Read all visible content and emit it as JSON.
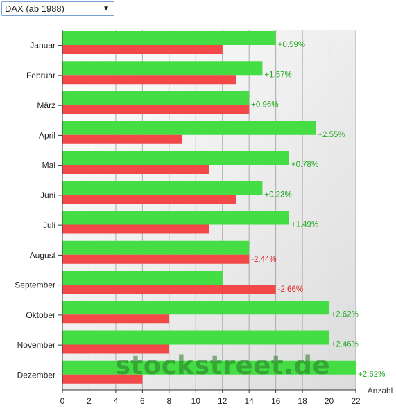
{
  "selector": {
    "value": "DAX (ab 1988)",
    "arrow": "▼"
  },
  "watermark": "stockstreet.de",
  "colors": {
    "up": "#44dd44",
    "down": "#f24848",
    "pos_text": "#22aa22",
    "neg_text": "#dd2222",
    "grid": "#aaaaaa"
  },
  "chart_data": {
    "type": "bar",
    "orientation": "horizontal",
    "categories": [
      "Januar",
      "Februar",
      "März",
      "April",
      "Mai",
      "Juni",
      "Juli",
      "August",
      "September",
      "Oktober",
      "November",
      "Dezember"
    ],
    "series": [
      {
        "color": "#44dd44",
        "values": [
          16,
          15,
          14,
          19,
          17,
          15,
          17,
          14,
          12,
          20,
          20,
          22
        ]
      },
      {
        "color": "#f24848",
        "values": [
          12,
          13,
          14,
          9,
          11,
          13,
          11,
          14,
          16,
          8,
          8,
          6
        ]
      }
    ],
    "data_labels": [
      "+0.59%",
      "+1.57%",
      "+0.96%",
      "+2.55%",
      "+0.78%",
      "+0.23%",
      "+1.49%",
      "-2.44%",
      "-2.66%",
      "+2.62%",
      "+2.46%",
      "+2.62%"
    ],
    "xlim": [
      0,
      22
    ],
    "xticks": [
      0,
      2,
      4,
      6,
      8,
      10,
      12,
      14,
      16,
      18,
      20,
      22
    ],
    "xlabel": "Anzahl",
    "ylabel": "",
    "title": "",
    "grid": true
  }
}
